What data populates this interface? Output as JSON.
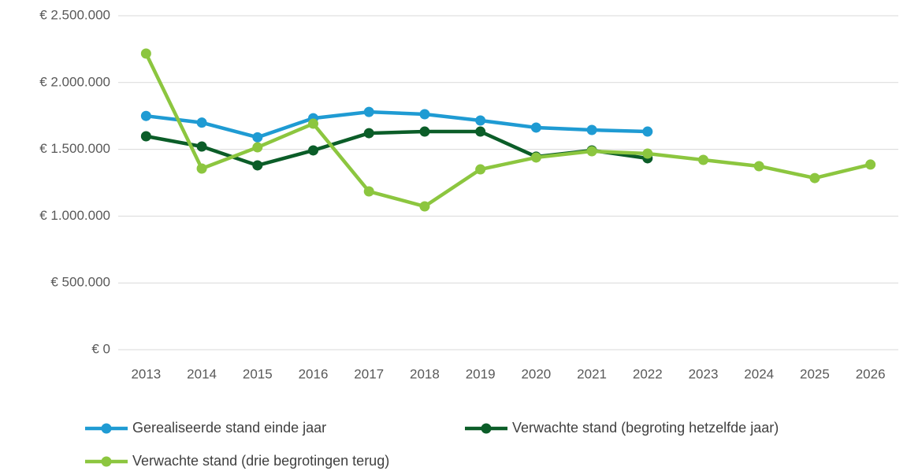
{
  "chart_data": {
    "type": "line",
    "categories": [
      "2013",
      "2014",
      "2015",
      "2016",
      "2017",
      "2018",
      "2019",
      "2020",
      "2021",
      "2022",
      "2023",
      "2024",
      "2025",
      "2026"
    ],
    "series": [
      {
        "name": "Gerealiseerde stand einde jaar",
        "color": "#1f9bd3",
        "values": [
          1750000,
          1700000,
          1590000,
          1733000,
          1780000,
          1763000,
          1716000,
          1663000,
          1645000,
          1633000,
          null,
          null,
          null,
          null
        ]
      },
      {
        "name": "Verwachte stand (begroting hetzelfde jaar)",
        "color": "#0b5d28",
        "values": [
          1598000,
          1521000,
          1380000,
          1492000,
          1621000,
          1633000,
          1633000,
          1445000,
          1492000,
          1433000,
          null,
          null,
          null,
          null
        ]
      },
      {
        "name": "Verwachte stand  (drie begrotingen terug)",
        "color": "#8cc63f",
        "values": [
          2217000,
          1356000,
          1515000,
          1692000,
          1185000,
          1073000,
          1350000,
          1439000,
          1486000,
          1468000,
          1421000,
          1374000,
          1285000,
          1386000
        ]
      }
    ],
    "ylim": [
      0,
      2500000
    ],
    "yticks": [
      {
        "value": 0,
        "label": "€ 0"
      },
      {
        "value": 500000,
        "label": "€ 500.000"
      },
      {
        "value": 1000000,
        "label": "€ 1.000.000"
      },
      {
        "value": 1500000,
        "label": "€ 1.500.000"
      },
      {
        "value": 2000000,
        "label": "€ 2.000.000"
      },
      {
        "value": 2500000,
        "label": "€ 2.500.000"
      }
    ],
    "grid": true
  }
}
